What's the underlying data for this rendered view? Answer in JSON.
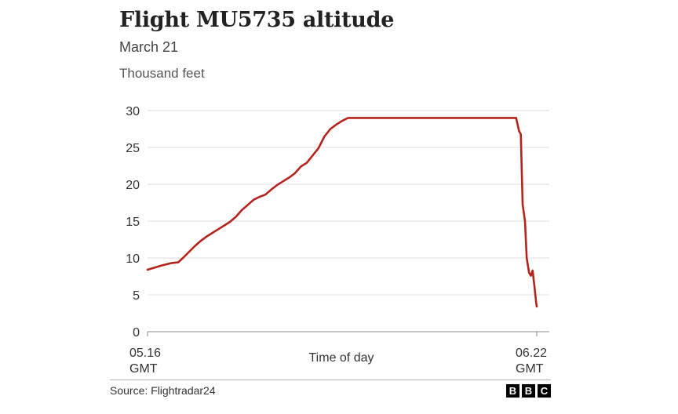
{
  "chart_data": {
    "type": "line",
    "title": "Flight MU5735 altitude",
    "subtitle": "March 21",
    "ylabel": "Thousand feet",
    "xlabel": "Time of day",
    "x_start_label": "05.16",
    "x_start_unit": "GMT",
    "x_end_label": "06.22",
    "x_end_unit": "GMT",
    "xlim": [
      0,
      66
    ],
    "ylim": [
      0,
      30
    ],
    "yticks": [
      0,
      5,
      10,
      15,
      20,
      25,
      30
    ],
    "grid": true,
    "line_color": "#b5241c",
    "series": [
      {
        "x": [
          0,
          2.5,
          4,
          5.2,
          6,
          7,
          8,
          9,
          10,
          11,
          12,
          13,
          14,
          15,
          16,
          17,
          18,
          19,
          20,
          21,
          22,
          23,
          24,
          25,
          26,
          27,
          28,
          29,
          30,
          31,
          32,
          33,
          34,
          35,
          36,
          37,
          38,
          38.6,
          39,
          40,
          41,
          42,
          43,
          44,
          62.5,
          63,
          63.3,
          63.6,
          64,
          64.3,
          64.7,
          65,
          65.3,
          65.6,
          65.9,
          66
        ],
        "y": [
          8.4,
          9.0,
          9.3,
          9.4,
          10.0,
          10.8,
          11.6,
          12.3,
          12.9,
          13.4,
          13.9,
          14.4,
          14.9,
          15.6,
          16.5,
          17.2,
          17.9,
          18.3,
          18.6,
          19.3,
          19.9,
          20.4,
          20.9,
          21.5,
          22.4,
          22.9,
          23.9,
          24.9,
          26.5,
          27.5,
          28.1,
          28.6,
          29.0,
          29.0,
          29.0,
          29.0,
          29.0,
          29.0,
          29.0,
          29.0,
          29.0,
          29.0,
          29.0,
          29.0,
          29.0,
          27.2,
          26.8,
          17.3,
          15.0,
          10.0,
          8.0,
          7.6,
          8.3,
          6.2,
          4.0,
          3.4
        ]
      }
    ]
  },
  "footer": {
    "source": "Source: Flightradar24",
    "logo_letters": [
      "B",
      "B",
      "C"
    ]
  }
}
